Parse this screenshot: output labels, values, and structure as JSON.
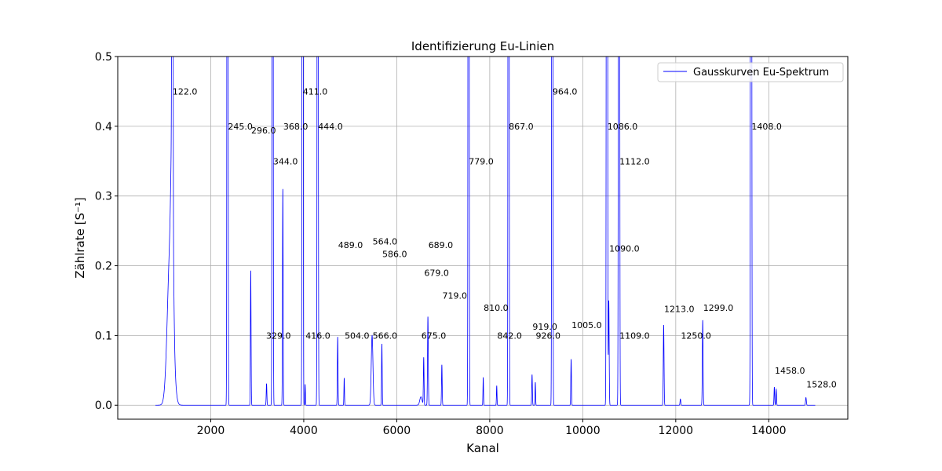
{
  "chart_data": {
    "type": "line",
    "title": "Identifizierung Eu-Linien",
    "xlabel": "Kanal",
    "ylabel": "Zählrate [S⁻¹]",
    "xlim": [
      0,
      15700
    ],
    "ylim": [
      -0.02,
      0.5
    ],
    "grid": true,
    "legend_placement": "top-right",
    "line_color": "#0000ff",
    "xticks": [
      2000,
      4000,
      6000,
      8000,
      10000,
      12000,
      14000
    ],
    "xtick_labels": [
      "2000",
      "4000",
      "6000",
      "8000",
      "10000",
      "12000",
      "14000"
    ],
    "yticks": [
      0.0,
      0.1,
      0.2,
      0.3,
      0.4,
      0.5
    ],
    "ytick_labels": [
      "0.0",
      "0.1",
      "0.2",
      "0.3",
      "0.4",
      "0.5"
    ],
    "series": [
      {
        "name": "Gausskurven Eu-Spektrum",
        "range": [
          810,
          15000
        ],
        "baseline": 0.0,
        "peaks": [
          {
            "x": 1130,
            "h": 0.23,
            "w": 60
          },
          {
            "x": 1170,
            "h": 0.2,
            "w": 25
          },
          {
            "x": 1175,
            "h": 3.0,
            "w": 8
          },
          {
            "x": 2360,
            "h": 3.0,
            "w": 8
          },
          {
            "x": 2860,
            "h": 0.193,
            "w": 7
          },
          {
            "x": 3200,
            "h": 0.031,
            "w": 7
          },
          {
            "x": 3330,
            "h": 3.0,
            "w": 8
          },
          {
            "x": 3550,
            "h": 0.31,
            "w": 7
          },
          {
            "x": 3975,
            "h": 3.0,
            "w": 8
          },
          {
            "x": 4030,
            "h": 0.03,
            "w": 6
          },
          {
            "x": 4300,
            "h": 3.0,
            "w": 8
          },
          {
            "x": 4730,
            "h": 0.098,
            "w": 7
          },
          {
            "x": 4870,
            "h": 0.039,
            "w": 6
          },
          {
            "x": 5470,
            "h": 0.1,
            "w": 18
          },
          {
            "x": 5680,
            "h": 0.088,
            "w": 7
          },
          {
            "x": 6520,
            "h": 0.012,
            "w": 25
          },
          {
            "x": 6580,
            "h": 0.068,
            "w": 7
          },
          {
            "x": 6670,
            "h": 0.127,
            "w": 8
          },
          {
            "x": 6970,
            "h": 0.058,
            "w": 7
          },
          {
            "x": 7545,
            "h": 3.0,
            "w": 8
          },
          {
            "x": 7860,
            "h": 0.04,
            "w": 6
          },
          {
            "x": 8150,
            "h": 0.028,
            "w": 6
          },
          {
            "x": 8405,
            "h": 3.0,
            "w": 8
          },
          {
            "x": 8910,
            "h": 0.044,
            "w": 7
          },
          {
            "x": 8980,
            "h": 0.033,
            "w": 6
          },
          {
            "x": 9345,
            "h": 3.0,
            "w": 8
          },
          {
            "x": 9750,
            "h": 0.066,
            "w": 7
          },
          {
            "x": 10520,
            "h": 3.0,
            "w": 9
          },
          {
            "x": 10560,
            "h": 0.15,
            "w": 8
          },
          {
            "x": 10780,
            "h": 3.0,
            "w": 9
          },
          {
            "x": 11740,
            "h": 0.115,
            "w": 8
          },
          {
            "x": 12100,
            "h": 0.009,
            "w": 8
          },
          {
            "x": 12580,
            "h": 0.122,
            "w": 8
          },
          {
            "x": 13620,
            "h": 3.0,
            "w": 9
          },
          {
            "x": 14120,
            "h": 0.026,
            "w": 7
          },
          {
            "x": 14160,
            "h": 0.023,
            "w": 7
          },
          {
            "x": 14800,
            "h": 0.011,
            "w": 9
          }
        ]
      }
    ],
    "annotations": [
      {
        "text": "122.0",
        "x": 1180,
        "y": 0.45
      },
      {
        "text": "245.0",
        "x": 2370,
        "y": 0.4
      },
      {
        "text": "296.0",
        "x": 2870,
        "y": 0.394
      },
      {
        "text": "329.0",
        "x": 3190,
        "y": 0.1
      },
      {
        "text": "344.0",
        "x": 3340,
        "y": 0.35
      },
      {
        "text": "368.0",
        "x": 3560,
        "y": 0.4
      },
      {
        "text": "411.0",
        "x": 3980,
        "y": 0.45
      },
      {
        "text": "416.0",
        "x": 4040,
        "y": 0.1
      },
      {
        "text": "444.0",
        "x": 4310,
        "y": 0.4
      },
      {
        "text": "489.0",
        "x": 4740,
        "y": 0.23
      },
      {
        "text": "504.0",
        "x": 4880,
        "y": 0.1
      },
      {
        "text": "564.0",
        "x": 5480,
        "y": 0.235
      },
      {
        "text": "566.0",
        "x": 5480,
        "y": 0.1
      },
      {
        "text": "586.0",
        "x": 5690,
        "y": 0.217
      },
      {
        "text": "675.0",
        "x": 6530,
        "y": 0.1
      },
      {
        "text": "679.0",
        "x": 6590,
        "y": 0.19
      },
      {
        "text": "689.0",
        "x": 6680,
        "y": 0.23
      },
      {
        "text": "719.0",
        "x": 6980,
        "y": 0.157
      },
      {
        "text": "779.0",
        "x": 7550,
        "y": 0.35
      },
      {
        "text": "810.0",
        "x": 7870,
        "y": 0.14
      },
      {
        "text": "842.0",
        "x": 8160,
        "y": 0.1
      },
      {
        "text": "867.0",
        "x": 8410,
        "y": 0.4
      },
      {
        "text": "919.0",
        "x": 8920,
        "y": 0.113
      },
      {
        "text": "926.0",
        "x": 8990,
        "y": 0.1
      },
      {
        "text": "964.0",
        "x": 9350,
        "y": 0.45
      },
      {
        "text": "1005.0",
        "x": 9760,
        "y": 0.115
      },
      {
        "text": "1086.0",
        "x": 10530,
        "y": 0.4
      },
      {
        "text": "1090.0",
        "x": 10570,
        "y": 0.225
      },
      {
        "text": "1109.0",
        "x": 10790,
        "y": 0.1
      },
      {
        "text": "1112.0",
        "x": 10790,
        "y": 0.35
      },
      {
        "text": "1213.0",
        "x": 11750,
        "y": 0.138
      },
      {
        "text": "1250.0",
        "x": 12110,
        "y": 0.1
      },
      {
        "text": "1299.0",
        "x": 12590,
        "y": 0.14
      },
      {
        "text": "1408.0",
        "x": 13630,
        "y": 0.4
      },
      {
        "text": "1458.0",
        "x": 14130,
        "y": 0.05
      },
      {
        "text": "1528.0",
        "x": 14810,
        "y": 0.03
      }
    ]
  }
}
